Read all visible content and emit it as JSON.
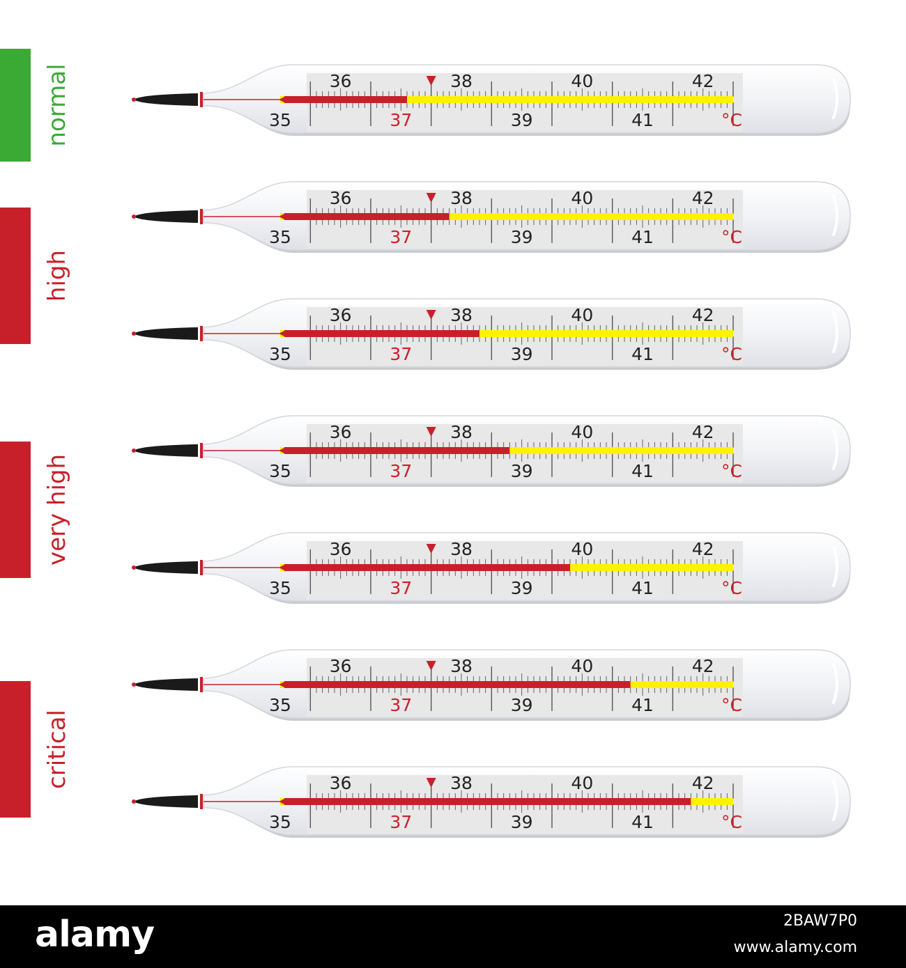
{
  "categories": [
    {
      "label": "normal",
      "color": "#3aaa35",
      "text_color": "#3aaa35",
      "thermometers": [
        0
      ]
    },
    {
      "label": "high",
      "color": "#c8202a",
      "text_color": "#c8202a",
      "thermometers": [
        1,
        2
      ]
    },
    {
      "label": "very high",
      "color": "#c8202a",
      "text_color": "#c8202a",
      "thermometers": [
        3,
        4
      ]
    },
    {
      "label": "critical",
      "color": "#c8202a",
      "text_color": "#c8202a",
      "thermometers": [
        5,
        6
      ]
    }
  ],
  "scale": {
    "min": 34.5,
    "max": 42.0,
    "top_labels": [
      "36",
      "38",
      "40",
      "42"
    ],
    "bottom_labels": [
      "35",
      "37",
      "39",
      "41"
    ],
    "highlight_label": "37",
    "unit": "°C",
    "marker_value": 37
  },
  "thermometers": [
    {
      "reading": 36.6
    },
    {
      "reading": 37.3
    },
    {
      "reading": 37.8
    },
    {
      "reading": 38.3
    },
    {
      "reading": 39.3
    },
    {
      "reading": 40.3
    },
    {
      "reading": 41.3
    }
  ],
  "colors": {
    "mercury": "#c8202a",
    "empty_column": "#fff200",
    "scale_plate": "#e8e8e8",
    "glass": "#f2f3f6",
    "numbers": "#222222",
    "highlight": "#c8202a",
    "bulb": "#1a1a1a"
  },
  "footer": {
    "logo": "alamy",
    "image_id": "2BAW7P0",
    "site": "www.alamy.com"
  }
}
